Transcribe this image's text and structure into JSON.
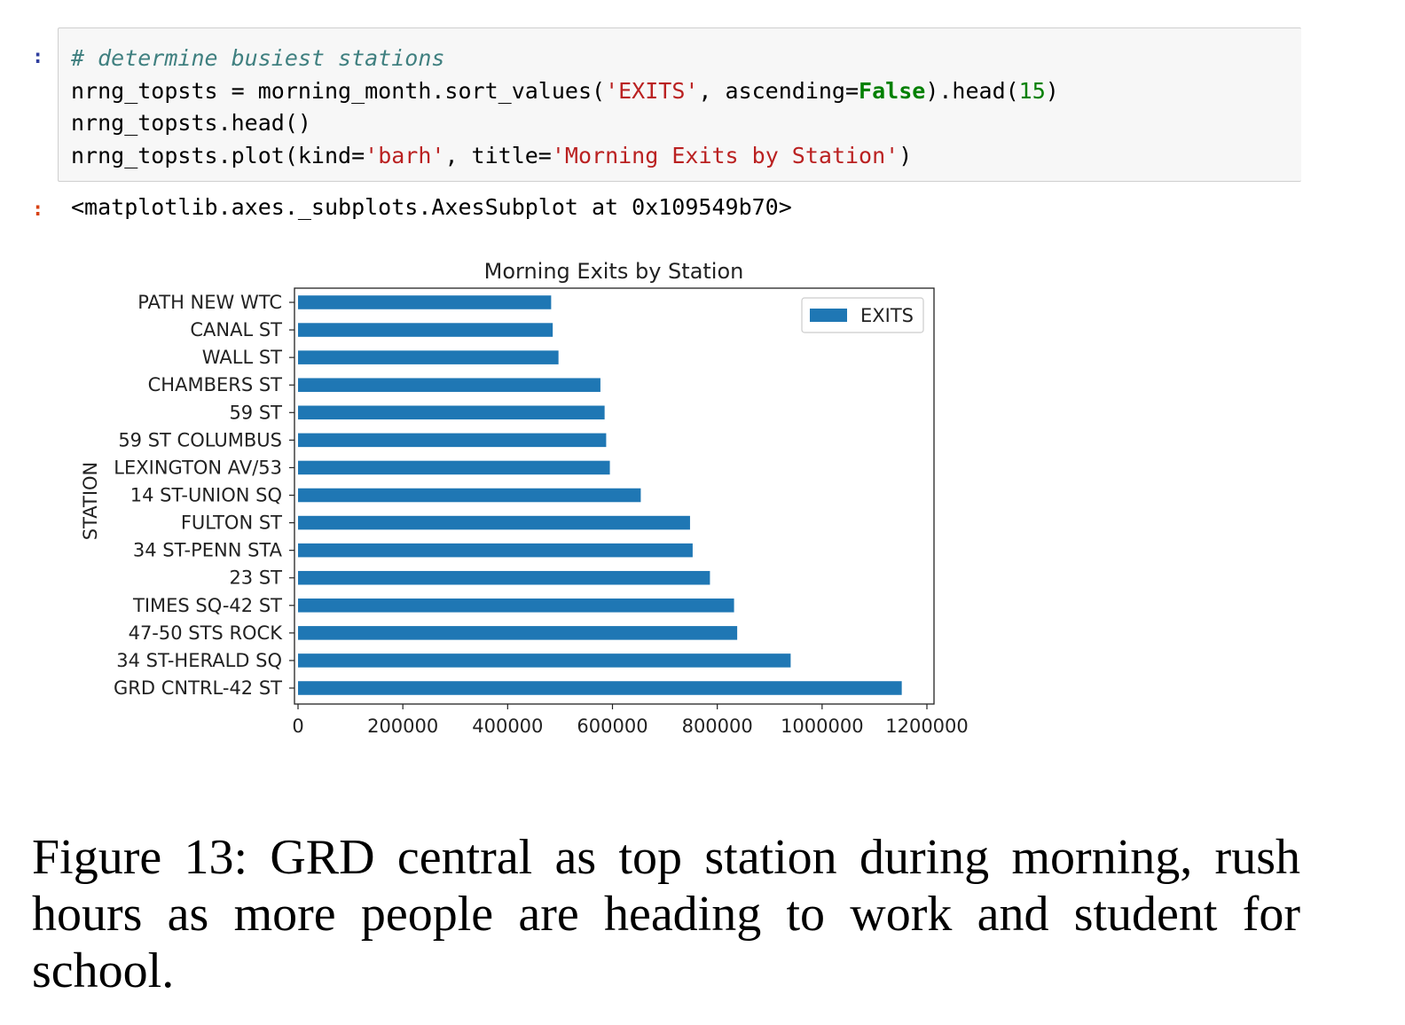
{
  "notebook": {
    "in_prompt": ":",
    "out_prompt": ":",
    "code": {
      "comment": "# determine busiest stations",
      "l2_a": "nrng_topsts = morning_month.sort_values(",
      "l2_str": "'EXITS'",
      "l2_b": ", ascending=",
      "l2_kw": "False",
      "l2_c": ").head(",
      "l2_num": "15",
      "l2_d": ")",
      "l3": "nrng_topsts.head()",
      "l4_a": "nrng_topsts.plot(kind=",
      "l4_str1": "'barh'",
      "l4_b": ", title=",
      "l4_str2": "'Morning Exits by Station'",
      "l4_c": ")"
    },
    "output_text": "<matplotlib.axes._subplots.AxesSubplot at 0x109549b70>"
  },
  "colors": {
    "bar": "#1f77b4"
  },
  "chart_data": {
    "type": "bar",
    "orientation": "horizontal",
    "title": "Morning Exits by Station",
    "xlabel": "",
    "ylabel": "STATION",
    "categories": [
      "GRD CNTRL-42 ST",
      "34 ST-HERALD SQ",
      "47-50 STS ROCK",
      "TIMES SQ-42 ST",
      "23 ST",
      "34 ST-PENN STA",
      "FULTON ST",
      "14 ST-UNION SQ",
      "LEXINGTON AV/53",
      "59 ST COLUMBUS",
      "59 ST",
      "CHAMBERS ST",
      "WALL ST",
      "CANAL ST",
      "PATH NEW WTC"
    ],
    "series": [
      {
        "name": "EXITS",
        "values": [
          1152000,
          940000,
          838000,
          832000,
          786000,
          753000,
          748000,
          654000,
          595000,
          588000,
          585000,
          577000,
          497000,
          486000,
          483000
        ]
      }
    ],
    "xlim": [
      0,
      1200000
    ],
    "xticks": [
      0,
      200000,
      400000,
      600000,
      800000,
      1000000,
      1200000
    ],
    "xtick_labels": [
      "0",
      "200000",
      "400000",
      "600000",
      "800000",
      "1000000",
      "1200000"
    ],
    "legend": "top-right",
    "grid": false
  },
  "caption": "Figure 13: GRD central as top station during morning, rush hours as more people are heading to work and student for school."
}
